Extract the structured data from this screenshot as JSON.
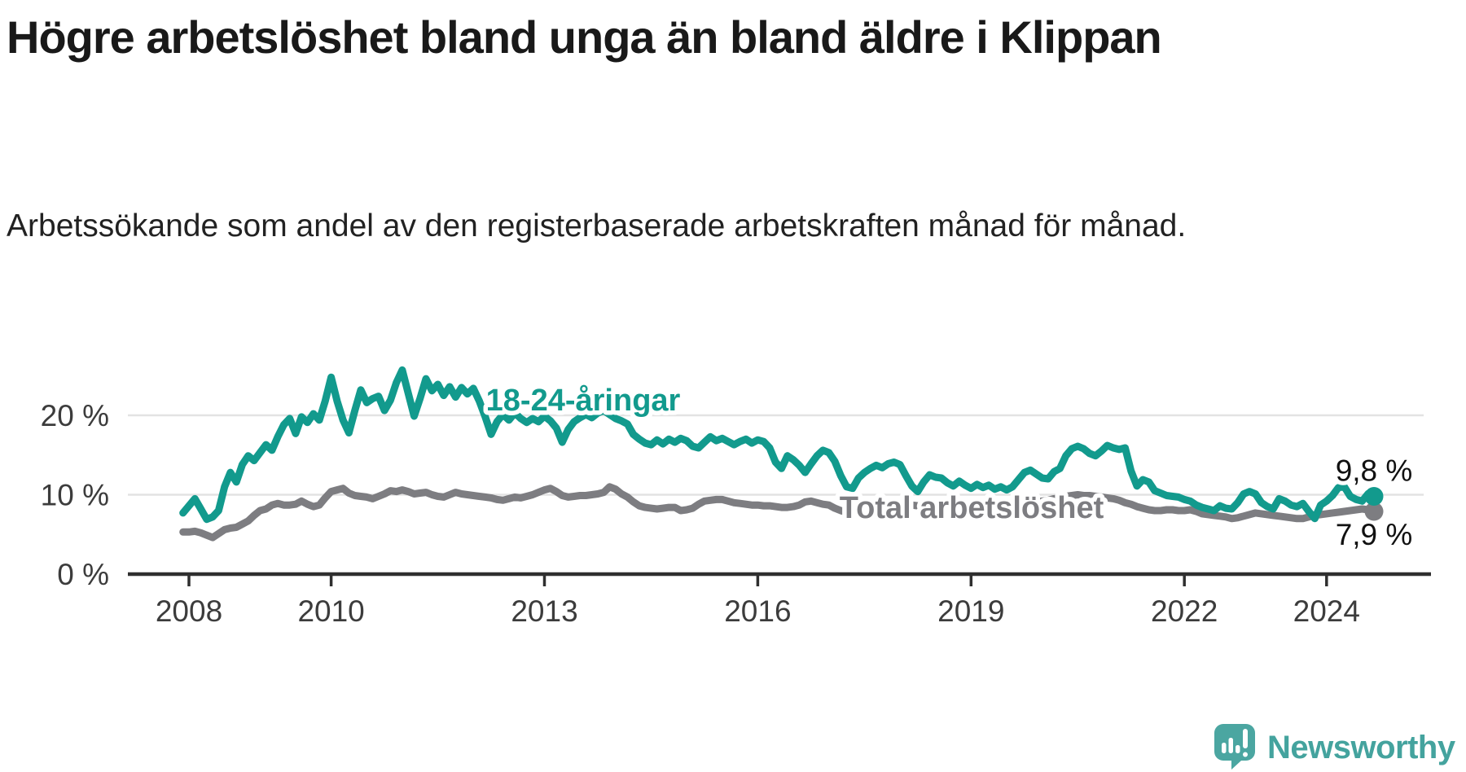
{
  "header": {
    "title": "Högre arbetslöshet bland unga än bland äldre i Klippan",
    "subtitle": "Arbetssökande som andel av den registerbaserade arbetskraften månad för månad."
  },
  "colors": {
    "youth_line": "#129a8d",
    "total_line": "#7d7d81",
    "grid": "#e3e3e3",
    "axis": "#2f2f2f",
    "tick_text": "#3c3c3c",
    "end_label_text": "#111111",
    "halo": "#ffffff",
    "brand_teal": "#4ba6a1",
    "brand_text_teal": "#44a39e"
  },
  "chart_data": {
    "type": "line",
    "title": "Högre arbetslöshet bland unga än bland äldre i Klippan",
    "subtitle": "Arbetssökande som andel av den registerbaserade arbetskraften månad för månad.",
    "xlabel": "",
    "ylabel": "",
    "grid": "horizontal gridlines at labeled y ticks",
    "legend": "inline series labels on plot",
    "xlim": [
      2007.8,
      2025.3
    ],
    "ylim": [
      0,
      27
    ],
    "x_unit": "decimal_year_monthly",
    "x_start": 2007.9167,
    "x_step": 0.0833333,
    "x_ticks": [
      2008,
      2010,
      2013,
      2016,
      2019,
      2022,
      2024
    ],
    "x_tick_labels": [
      "2008",
      "2010",
      "2013",
      "2016",
      "2019",
      "2022",
      "2024"
    ],
    "y_ticks": [
      0,
      10,
      20
    ],
    "y_tick_labels": [
      "0 %",
      "10 %",
      "20 %"
    ],
    "series": [
      {
        "name": "Total arbetslöshet",
        "label": "Total arbetslöshet",
        "color": "#7d7d81",
        "end_label": "7,9 %",
        "end_value": 7.9,
        "values": [
          5.3,
          5.3,
          5.4,
          5.2,
          4.9,
          4.6,
          5.1,
          5.6,
          5.8,
          5.9,
          6.3,
          6.7,
          7.4,
          8.0,
          8.2,
          8.7,
          8.9,
          8.7,
          8.7,
          8.8,
          9.2,
          8.8,
          8.5,
          8.7,
          9.6,
          10.4,
          10.6,
          10.8,
          10.2,
          9.9,
          9.8,
          9.7,
          9.5,
          9.8,
          10.1,
          10.5,
          10.4,
          10.6,
          10.4,
          10.1,
          10.2,
          10.3,
          10.0,
          9.8,
          9.7,
          10.0,
          10.3,
          10.1,
          10.0,
          9.9,
          9.8,
          9.7,
          9.6,
          9.4,
          9.3,
          9.5,
          9.7,
          9.6,
          9.8,
          10.0,
          10.3,
          10.6,
          10.8,
          10.4,
          9.9,
          9.7,
          9.8,
          9.9,
          9.9,
          10.0,
          10.1,
          10.3,
          11.0,
          10.7,
          10.1,
          9.7,
          9.1,
          8.6,
          8.4,
          8.3,
          8.2,
          8.3,
          8.4,
          8.4,
          8.0,
          8.1,
          8.3,
          8.8,
          9.2,
          9.3,
          9.4,
          9.4,
          9.2,
          9.0,
          8.9,
          8.8,
          8.7,
          8.7,
          8.6,
          8.6,
          8.5,
          8.4,
          8.4,
          8.5,
          8.7,
          9.1,
          9.2,
          9.0,
          8.8,
          8.7,
          8.3,
          8.0,
          7.8,
          7.7,
          7.9,
          8.0,
          8.2,
          8.4,
          8.5,
          8.8,
          9.0,
          8.9,
          8.8,
          8.7,
          8.6,
          8.6,
          8.6,
          8.5,
          8.5,
          8.6,
          8.6,
          8.7,
          8.7,
          8.7,
          8.7,
          8.7,
          8.7,
          8.6,
          8.6,
          8.6,
          8.7,
          8.8,
          8.9,
          9.0,
          9.1,
          9.2,
          9.3,
          9.5,
          9.6,
          9.8,
          9.9,
          10.0,
          9.9,
          9.9,
          9.8,
          9.7,
          9.6,
          9.5,
          9.3,
          9.0,
          8.8,
          8.5,
          8.3,
          8.1,
          8.0,
          8.0,
          8.1,
          8.1,
          8.0,
          8.0,
          8.1,
          7.9,
          7.6,
          7.5,
          7.4,
          7.3,
          7.2,
          7.0,
          7.1,
          7.3,
          7.5,
          7.7,
          7.6,
          7.5,
          7.4,
          7.3,
          7.2,
          7.1,
          7.0,
          7.0,
          7.2,
          7.4,
          7.5,
          7.6,
          7.7,
          7.8,
          7.9,
          8.0,
          8.1,
          8.2,
          8.1,
          7.9
        ]
      },
      {
        "name": "18-24-åringar",
        "label": "18-24-åringar",
        "color": "#129a8d",
        "end_label": "9,8 %",
        "end_value": 9.8,
        "values": [
          7.7,
          8.6,
          9.5,
          8.2,
          6.9,
          7.2,
          8.0,
          11.0,
          12.8,
          11.6,
          13.8,
          14.9,
          14.3,
          15.3,
          16.3,
          15.6,
          17.3,
          18.8,
          19.6,
          17.7,
          19.8,
          19.1,
          20.2,
          19.4,
          21.8,
          24.8,
          21.8,
          19.4,
          17.8,
          20.6,
          23.2,
          21.6,
          22.1,
          22.4,
          20.6,
          21.9,
          24.1,
          25.7,
          22.8,
          19.9,
          22.1,
          24.6,
          23.1,
          23.9,
          22.5,
          23.6,
          22.3,
          23.5,
          22.7,
          23.4,
          21.8,
          19.8,
          17.6,
          19.2,
          20.1,
          19.4,
          20.3,
          19.6,
          19.1,
          19.6,
          19.2,
          19.9,
          19.3,
          18.4,
          16.6,
          18.2,
          19.2,
          19.7,
          20.1,
          19.7,
          20.3,
          20.6,
          20.1,
          19.6,
          19.3,
          18.9,
          17.6,
          17.0,
          16.5,
          16.3,
          16.9,
          16.4,
          17.0,
          16.6,
          17.1,
          16.8,
          16.1,
          15.9,
          16.6,
          17.3,
          16.8,
          17.1,
          16.7,
          16.3,
          16.7,
          17.0,
          16.5,
          16.9,
          16.7,
          15.9,
          14.1,
          13.3,
          14.9,
          14.4,
          13.7,
          12.8,
          13.9,
          14.9,
          15.6,
          15.3,
          14.2,
          12.4,
          11.0,
          10.8,
          12.1,
          12.8,
          13.3,
          13.7,
          13.4,
          13.9,
          14.1,
          13.8,
          12.4,
          11.1,
          10.4,
          11.6,
          12.5,
          12.2,
          12.1,
          11.5,
          11.1,
          11.7,
          11.2,
          10.8,
          11.3,
          10.9,
          11.2,
          10.7,
          11.0,
          10.6,
          11.0,
          11.9,
          12.8,
          13.1,
          12.6,
          12.1,
          12.0,
          12.9,
          13.3,
          14.9,
          15.8,
          16.1,
          15.8,
          15.2,
          14.9,
          15.5,
          16.2,
          15.9,
          15.7,
          15.9,
          13.0,
          11.1,
          11.9,
          11.6,
          10.5,
          10.2,
          9.9,
          9.8,
          9.7,
          9.4,
          9.2,
          8.7,
          8.4,
          8.2,
          8.0,
          8.6,
          8.3,
          8.2,
          9.0,
          10.1,
          10.4,
          10.1,
          9.0,
          8.5,
          8.2,
          9.5,
          9.2,
          8.7,
          8.5,
          8.9,
          7.9,
          7.0,
          8.7,
          9.2,
          9.9,
          10.9,
          11.0,
          9.8,
          9.4,
          9.2,
          10.1,
          9.8
        ]
      }
    ]
  },
  "footer": {
    "brand": "Newsworthy",
    "logo_icon": "speech-bubble-bar-chart-exclamation"
  }
}
